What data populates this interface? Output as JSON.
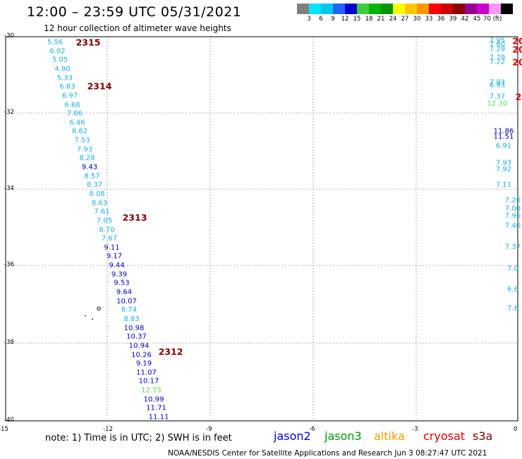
{
  "title": "12:00 – 23:59 UTC 05/31/2021",
  "subtitle": "12 hour collection of altimeter wave heights",
  "colorbar": {
    "colors": [
      "#808080",
      "#00e5ff",
      "#00c8f0",
      "#1e64ff",
      "#0000cd",
      "#3ccc3c",
      "#00b400",
      "#009600",
      "#ffff00",
      "#ffc800",
      "#ff9600",
      "#ff0000",
      "#cd0000",
      "#8b0000",
      "#960096",
      "#cd00cd",
      "#ff96ff",
      "#000000"
    ],
    "tick_labels": [
      "3",
      "6",
      "9",
      "12",
      "15",
      "18",
      "21",
      "24",
      "27",
      "30",
      "33",
      "36",
      "39",
      "42",
      "45",
      "70 (ft)"
    ]
  },
  "axes": {
    "x_ticks": [
      "-15",
      "-12",
      "-9",
      "-6",
      "-3",
      "0"
    ],
    "y_ticks": [
      "-30",
      "-32",
      "-34",
      "-36",
      "-38",
      "-40"
    ]
  },
  "track_ids": [
    "2315",
    "2314",
    "2313",
    "2312"
  ],
  "west_track_values": [
    "5.56",
    "6.02",
    "5.05",
    "4.90",
    "5.33",
    "6.83",
    "6.97",
    "6.68",
    "7.06",
    "6.46",
    "8.62",
    "7.53",
    "7.93",
    "8.28",
    "9.43",
    "8.57",
    "8.37",
    "8.08",
    "8.63",
    "7.61",
    "7.05",
    "8.70",
    "7.67",
    "9.11",
    "9.17",
    "9.44",
    "9.39",
    "9.53",
    "9.64",
    "10.07",
    "8.74",
    "8.83",
    "10.98",
    "10.37",
    "10.94",
    "10.26",
    "9.19",
    "11.07",
    "10.17",
    "12.75",
    "10.99",
    "11.71",
    "11.11"
  ],
  "east_track_values": [
    "7.95",
    "7.60",
    "7.29",
    "7.79",
    "7.22",
    "7.93",
    "6.93",
    "7.37",
    "12.30",
    "11.86",
    "11.51",
    "6.91",
    "7.93",
    "7.92",
    "7.11",
    "7.20",
    "7.00",
    "7.96",
    "7.40",
    "7.37",
    "7.0",
    "6.6",
    "7.8"
  ],
  "east_track_ids": [
    "20",
    "20",
    "20",
    "2"
  ],
  "note": "note:  1) Time is in UTC;  2) SWH is in feet",
  "legend": [
    {
      "label": "jason2",
      "color": "#0000dd"
    },
    {
      "label": "jason3",
      "color": "#009900"
    },
    {
      "label": "altika",
      "color": "#ff9900"
    },
    {
      "label": "cryosat",
      "color": "#dd0000"
    },
    {
      "label": "s3a",
      "color": "#7a0000"
    }
  ],
  "footer": "NOAA/NESDIS Center for Satellite Applications and Research    Jun  3 08:27:47 UTC 2021"
}
